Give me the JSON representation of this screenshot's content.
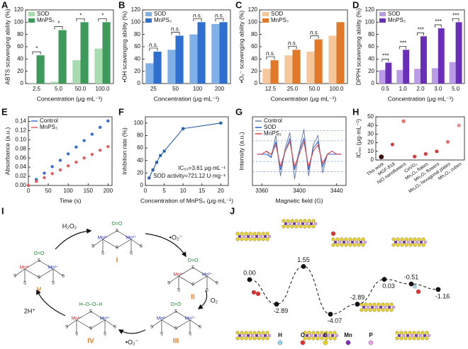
{
  "chart_data": [
    {
      "panel_label": "A",
      "type": "bar",
      "ylabel": "ABTS scavenging ability (%)",
      "xlabel": "Concentration (μg·mL⁻¹)",
      "categories": [
        "2.5",
        "5.0",
        "50.0",
        "100.0"
      ],
      "series": [
        {
          "name": "SOD",
          "color": "#a8dcb0",
          "values": [
            1,
            3,
            38,
            57
          ]
        },
        {
          "name": "MnPS₃",
          "color": "#3e9a5a",
          "values": [
            46,
            87,
            100,
            100
          ]
        }
      ],
      "ylim": [
        0,
        120
      ],
      "yticks": [
        0,
        20,
        40,
        60,
        80,
        100,
        120
      ],
      "annotations": [
        "*",
        "*",
        "*",
        "*"
      ]
    },
    {
      "panel_label": "B",
      "type": "bar",
      "ylabel": "•OH scavenging ability (%)",
      "xlabel": "Concentration (μg·mL⁻¹)",
      "categories": [
        "25",
        "50",
        "100",
        "200"
      ],
      "series": [
        {
          "name": "SOD",
          "color": "#7fb0e8",
          "values": [
            33,
            55,
            80,
            97
          ]
        },
        {
          "name": "MnPS₃",
          "color": "#2f6fd0",
          "values": [
            52,
            78,
            100,
            100
          ]
        }
      ],
      "ylim": [
        0,
        120
      ],
      "yticks": [
        0,
        20,
        40,
        60,
        80,
        100,
        120
      ],
      "annotations": [
        "n.s.",
        "n.s.",
        "n.s.",
        "n.s."
      ]
    },
    {
      "panel_label": "C",
      "type": "bar",
      "ylabel": "•O₂⁻ scavenging ability (%)",
      "xlabel": "Concentration (μg·mL⁻¹)",
      "categories": [
        "12.5",
        "25.0",
        "50.0",
        "100.0"
      ],
      "series": [
        {
          "name": "SOD",
          "color": "#f6c79a",
          "values": [
            24,
            46,
            52,
            78
          ]
        },
        {
          "name": "MnPS₃",
          "color": "#e0792a",
          "values": [
            38,
            55,
            72,
            100
          ]
        }
      ],
      "ylim": [
        0,
        120
      ],
      "yticks": [
        0,
        20,
        40,
        60,
        80,
        100,
        120
      ],
      "annotations": [
        "n.s.",
        "n.s.",
        "n.s."
      ]
    },
    {
      "panel_label": "D",
      "type": "bar",
      "ylabel": "DPPH scavenging ability (%)",
      "xlabel": "Concentration (μg·mL⁻¹)",
      "categories": [
        "0.5",
        "1.0",
        "2.0",
        "3.0",
        "5.0"
      ],
      "series": [
        {
          "name": "SOD",
          "color": "#b99be8",
          "values": [
            22,
            22,
            24,
            25,
            35
          ]
        },
        {
          "name": "MnPS₃",
          "color": "#6a2fb8",
          "values": [
            34,
            55,
            77,
            90,
            100
          ]
        }
      ],
      "ylim": [
        0,
        120
      ],
      "yticks": [
        0,
        20,
        40,
        60,
        80,
        100,
        120
      ],
      "annotations": [
        "***",
        "***",
        "***",
        "***",
        "***"
      ]
    },
    {
      "panel_label": "E",
      "type": "line",
      "markers": true,
      "ylabel": "Absorbance (a.u.)",
      "xlabel": "Time (s)",
      "x": [
        0,
        20,
        40,
        60,
        80,
        100,
        120,
        140,
        160,
        180,
        200
      ],
      "series": [
        {
          "name": "Control",
          "color": "#3a6fd0",
          "values": [
            0.0,
            0.013,
            0.027,
            0.041,
            0.055,
            0.069,
            0.084,
            0.098,
            0.112,
            0.127,
            0.141
          ]
        },
        {
          "name": "MnPS₃",
          "color": "#e06060",
          "values": [
            0.0,
            0.009,
            0.017,
            0.026,
            0.034,
            0.043,
            0.051,
            0.06,
            0.068,
            0.077,
            0.085
          ]
        }
      ],
      "xlim": [
        0,
        210
      ],
      "xticks": [
        0,
        50,
        100,
        150,
        200
      ],
      "ylim": [
        0,
        0.15
      ],
      "yticks": [
        {
          "value": 0,
          "label": "0.00"
        },
        {
          "value": 0.02,
          "label": "0.02"
        },
        {
          "value": 0.04,
          "label": "0.04"
        },
        {
          "value": 0.06,
          "label": "0.06"
        },
        {
          "value": 0.08,
          "label": "0.08"
        },
        {
          "value": 0.1,
          "label": "0.10"
        },
        {
          "value": 0.12,
          "label": "0.12"
        },
        {
          "value": 0.14,
          "label": "0.14"
        }
      ]
    },
    {
      "panel_label": "F",
      "type": "scatter",
      "line": true,
      "ylabel": "Inhibition rate (%)",
      "xlabel": "Concentration of MnPS₃ (μg·mL⁻¹)",
      "x": [
        1,
        2,
        3,
        4,
        5,
        10,
        20
      ],
      "values": [
        12,
        25,
        37,
        48,
        55,
        91,
        100
      ],
      "color": "#2a5fa8",
      "xlim": [
        0,
        22
      ],
      "xticks": [
        0,
        5,
        10,
        15,
        20
      ],
      "ylim": [
        0,
        110
      ],
      "yticks": [
        0,
        20,
        40,
        60,
        80,
        100
      ],
      "annotations": [
        "IC₅₀=3.61 μg·mL⁻¹",
        "SOD activity=721.12 U·mg⁻¹"
      ]
    },
    {
      "panel_label": "G",
      "type": "line",
      "markers": false,
      "ylabel": "Intensity (a.u.)",
      "xlabel": "Magnetic field (G)",
      "x": [
        3355,
        3360,
        3365,
        3370,
        3375,
        3380,
        3385,
        3390,
        3395,
        3400,
        3405,
        3410,
        3415,
        3420,
        3425,
        3430,
        3435,
        3440,
        3445
      ],
      "series": [
        {
          "name": "Control",
          "color": "#6b7fa8",
          "values": [
            0,
            0,
            1,
            -1,
            6,
            -7,
            2,
            7,
            -8,
            1,
            8,
            -7,
            3,
            6,
            -6,
            0,
            1,
            0,
            0
          ]
        },
        {
          "name": "SOD",
          "color": "#2a5fd0",
          "values": [
            0,
            0,
            0,
            -1,
            4,
            -5,
            1,
            5,
            -5,
            1,
            5,
            -5,
            2,
            4,
            -4,
            0,
            0,
            0,
            0
          ]
        },
        {
          "name": "MnPS₂",
          "color": "#e04040",
          "values": [
            0,
            0,
            1,
            0,
            3,
            -4,
            1,
            4,
            -4,
            0,
            4,
            -4,
            1,
            3,
            -3,
            0,
            1,
            0,
            0
          ]
        }
      ],
      "xlim": [
        3350,
        3450
      ],
      "xticks": [
        3360,
        3400,
        3440
      ],
      "ylim": [
        -10,
        12
      ]
    },
    {
      "panel_label": "H",
      "type": "dot",
      "ylabel": "IC₅₀ (μg·mL⁻¹)",
      "categories": [
        "This work",
        "MGF-818",
        "NiO nanoflowers",
        "CeVO₄",
        "Mn₃O₄ flakes",
        "Mn₃O₄ flowers",
        "Mn₃O₄ hexagonal plates",
        "Mn₃O₄ cubes"
      ],
      "values": [
        3.61,
        18,
        45,
        4,
        7,
        10,
        21,
        40
      ],
      "colors": [
        "#3a1010",
        "#d04040",
        "#e87060",
        "#d04040",
        "#d04040",
        "#d04040",
        "#e07070",
        "#e89090"
      ],
      "ylim": [
        0,
        50
      ],
      "yticks": [
        0,
        10,
        20,
        30,
        40,
        50
      ]
    },
    {
      "panel_label": "I",
      "type": "diagram",
      "atom_label": "S",
      "nodes": [
        {
          "label": "I",
          "adsorbate": "O=O",
          "metals": [
            "Mn²⁺",
            "Mn²⁺"
          ]
        },
        {
          "label": "II",
          "adsorbate": "O=O",
          "metals": [
            "Mn³⁺",
            "Mn²⁺"
          ]
        },
        {
          "label": "III",
          "adsorbate": "O=O",
          "metals": [
            "Mn²⁺",
            "Mn²⁺"
          ]
        },
        {
          "label": "IV",
          "adsorbate": "H–O–O–H",
          "metals": [
            "Mn³⁺",
            "Mn²⁺"
          ]
        },
        {
          "label": "V",
          "adsorbate": "O=O",
          "metals": [
            "Mn³⁺",
            "Mn²⁺"
          ]
        }
      ],
      "reagents": [
        "H₂O₂",
        "•O₂⁻",
        "O₂",
        "•O₂⁻",
        "2H⁺"
      ]
    },
    {
      "panel_label": "J",
      "type": "energy",
      "values": [
        0,
        -2.89,
        1.55,
        -4.07,
        -2.89,
        0.03,
        -0.51,
        -1.16
      ],
      "value_labels": [
        "0.00",
        "-2.89",
        "1.55",
        "-4.07",
        "-2.89",
        "0.03",
        "-0.51",
        "-1.16"
      ],
      "ylim": [
        -5,
        2.5
      ],
      "legend": [
        {
          "name": "H",
          "color": "#9ad0e8"
        },
        {
          "name": "O",
          "color": "#e03030"
        },
        {
          "name": "S",
          "color": "#e8d020"
        },
        {
          "name": "Mn",
          "color": "#7a2fb0"
        },
        {
          "name": "P",
          "color": "#e8a0e0"
        }
      ]
    }
  ]
}
